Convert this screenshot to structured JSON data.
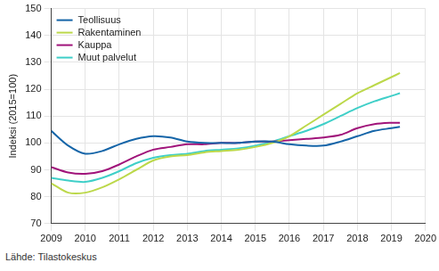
{
  "chart_data": {
    "type": "line",
    "y_label": "Indeksi (2015=100)",
    "annotations": [
      "Lähde: Tilastokeskus"
    ],
    "x": [
      2009,
      2009.5,
      2010,
      2010.5,
      2011,
      2011.5,
      2012,
      2012.5,
      2013,
      2013.5,
      2014,
      2014.5,
      2015,
      2015.5,
      2016,
      2016.5,
      2017,
      2017.5,
      2018,
      2018.5,
      2019,
      2019.25
    ],
    "series": [
      {
        "name": "Teollisuus",
        "color": "#1565a8",
        "values": [
          104.5,
          99,
          96,
          97,
          99.5,
          101.5,
          102.5,
          102,
          100.5,
          100,
          100,
          100,
          100.5,
          100.5,
          99.5,
          99,
          99,
          100.5,
          102.5,
          104.5,
          105.5,
          106
        ]
      },
      {
        "name": "Rakentaminen",
        "color": "#bcd84a",
        "values": [
          85,
          81.5,
          81.5,
          83.5,
          86.5,
          90,
          93.5,
          95,
          95.5,
          96.5,
          97,
          97.5,
          98.5,
          100,
          102.5,
          106.5,
          110.5,
          114.5,
          118.5,
          121.5,
          124.5,
          126
        ]
      },
      {
        "name": "Kauppa",
        "color": "#a0137a",
        "values": [
          91,
          89,
          88.5,
          89.5,
          92,
          95,
          97.5,
          98.5,
          99.5,
          99.5,
          100,
          100,
          100.5,
          100.5,
          101,
          101.5,
          102,
          103,
          105.5,
          107,
          107.5,
          107.5
        ]
      },
      {
        "name": "Muut palvelut",
        "color": "#3fcfc8",
        "values": [
          87,
          86,
          85.5,
          87,
          89.5,
          92.5,
          94.5,
          95.5,
          96,
          97,
          97.5,
          98,
          99,
          100.5,
          102.5,
          104.5,
          107,
          110,
          113,
          115.5,
          117.5,
          118.5
        ]
      }
    ],
    "xlim": [
      2009,
      2020
    ],
    "xticks": [
      2009,
      2010,
      2011,
      2012,
      2013,
      2014,
      2015,
      2016,
      2017,
      2018,
      2019,
      2020
    ],
    "ylim": [
      70,
      150
    ],
    "yticks": [
      70,
      80,
      90,
      100,
      110,
      120,
      130,
      140,
      150
    ],
    "grid": true,
    "legend": "top-left"
  }
}
